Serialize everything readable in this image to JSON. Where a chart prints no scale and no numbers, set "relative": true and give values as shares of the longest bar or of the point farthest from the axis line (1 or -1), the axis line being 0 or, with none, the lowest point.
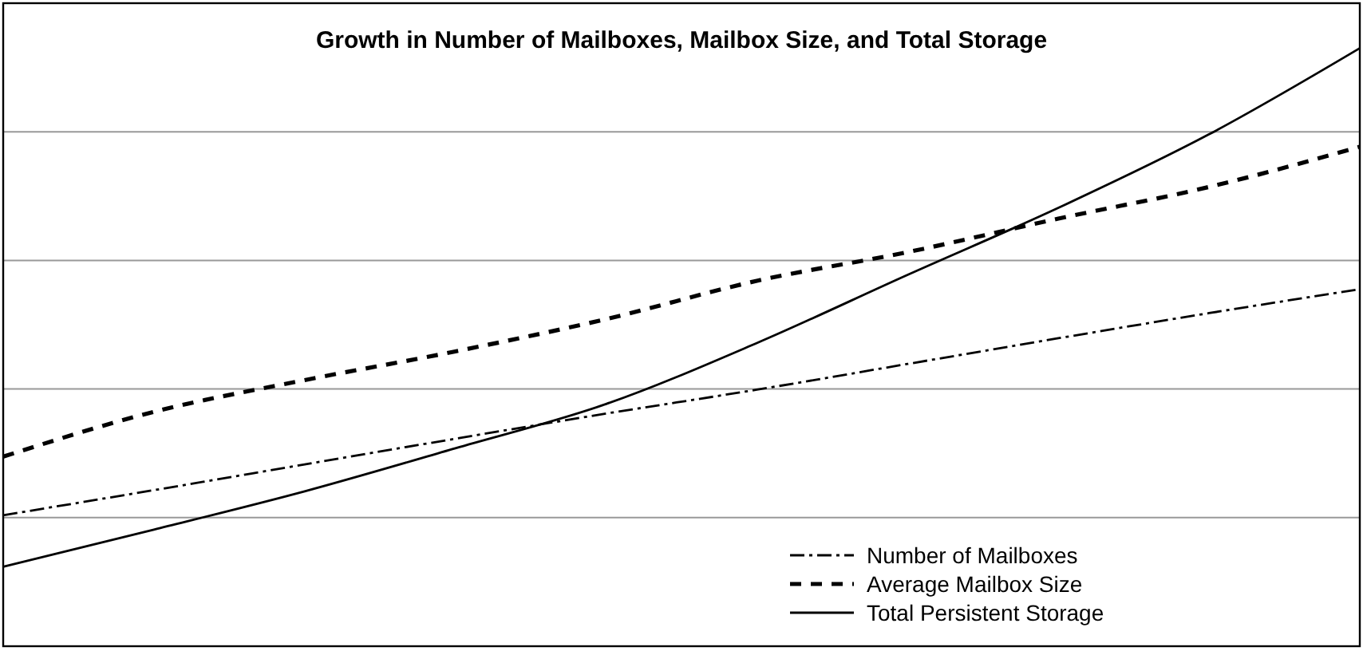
{
  "chart_data": {
    "type": "line",
    "title": "Growth in Number of Mailboxes, Mailbox Size, and Total Storage",
    "relative": true,
    "grid": "y",
    "legend": "bottom right",
    "categories": [
      null,
      null,
      null,
      null,
      null,
      null,
      null,
      null,
      null,
      null
    ],
    "series": [
      {
        "name": "Number of Mailboxes",
        "color": "#000000",
        "line_style": "dashed",
        "values": [
          0.219,
          0.261,
          0.304,
          0.347,
          0.389,
          0.429,
          0.472,
          0.515,
          0.557,
          0.597
        ]
      },
      {
        "name": "Average Mailbox Size",
        "color": "#000000",
        "line_style": "dashed",
        "values": [
          0.317,
          0.392,
          0.445,
          0.493,
          0.547,
          0.611,
          0.659,
          0.715,
          0.768,
          0.835
        ]
      },
      {
        "name": "Total Persistent Storage",
        "color": "#000000",
        "line_style": "solid",
        "values": [
          0.133,
          0.195,
          0.259,
          0.331,
          0.405,
          0.507,
          0.621,
          0.733,
          0.856,
          1
        ]
      }
    ]
  }
}
